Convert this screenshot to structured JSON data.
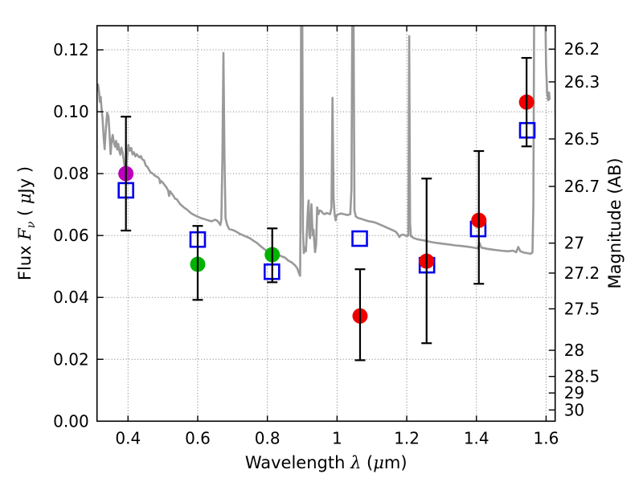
{
  "figure": {
    "background": "#ffffff",
    "xlabel_parts": [
      {
        "t": "Wavelength  ",
        "i": false
      },
      {
        "t": "λ",
        "i": true
      },
      {
        "t": " (",
        "i": false
      },
      {
        "t": "μ",
        "i": true
      },
      {
        "t": "m)",
        "i": false
      }
    ],
    "ylabel_left_parts": [
      {
        "t": "Flux  ",
        "i": false
      },
      {
        "t": "F",
        "i": true
      },
      {
        "t": "ν",
        "i": true,
        "sub": true
      },
      {
        "t": "  ( ",
        "i": false
      },
      {
        "t": "μ",
        "i": true
      },
      {
        "t": "Jy )",
        "i": false
      }
    ],
    "ylabel_right": "Magnitude (AB)"
  },
  "chart_data": {
    "type": "line+scatter",
    "title": "",
    "xlabel": "Wavelength λ (μm)",
    "ylabel_left": "Flux Fν (μJy)",
    "ylabel_right": "Magnitude (AB)",
    "grid": true,
    "grid_color": "#777777",
    "x_axis": {
      "range": [
        0.311,
        1.626
      ],
      "ticks": [
        0.4,
        0.6,
        0.8,
        1.0,
        1.2,
        1.4,
        1.6
      ],
      "tick_labels": [
        "0.4",
        "0.6",
        "0.8",
        "1",
        "1.2",
        "1.4",
        "1.6"
      ]
    },
    "y_axis_left": {
      "range": [
        0,
        0.1278
      ],
      "ticks": [
        0.0,
        0.02,
        0.04,
        0.06,
        0.08,
        0.1,
        0.12
      ],
      "tick_labels": [
        "0.00",
        "0.02",
        "0.04",
        "0.06",
        "0.08",
        "0.10",
        "0.12"
      ]
    },
    "y_axis_right": {
      "note": "AB magnitude axis, flux-linear placement: flux_uJy = 10^((23.9 - m)/2.5)",
      "flux_zeropoint_mag": 23.9,
      "tick_values_mag": [
        26.2,
        26.3,
        26.5,
        26.7,
        27,
        27.2,
        27.5,
        28,
        28.5,
        29,
        30
      ],
      "tick_labels": [
        "26.2",
        "26.3",
        "26.5",
        "26.7",
        "27",
        "27.2",
        "27.5",
        "28",
        "28.5",
        "29",
        "30"
      ]
    },
    "series": [
      {
        "name": "model-spectrum",
        "type": "line",
        "color": "#999999",
        "width": 2.6,
        "points": [
          [
            0.311,
            0.1075
          ],
          [
            0.314,
            0.1088
          ],
          [
            0.317,
            0.1062
          ],
          [
            0.319,
            0.1032
          ],
          [
            0.3215,
            0.1048
          ],
          [
            0.324,
            0.1012
          ],
          [
            0.327,
            0.0978
          ],
          [
            0.33,
            0.092
          ],
          [
            0.333,
            0.0879
          ],
          [
            0.336,
            0.0936
          ],
          [
            0.34,
            0.0996
          ],
          [
            0.344,
            0.0984
          ],
          [
            0.347,
            0.0926
          ],
          [
            0.35,
            0.0863
          ],
          [
            0.353,
            0.0906
          ],
          [
            0.356,
            0.0925
          ],
          [
            0.359,
            0.0903
          ],
          [
            0.363,
            0.0887
          ],
          [
            0.366,
            0.0906
          ],
          [
            0.369,
            0.0878
          ],
          [
            0.372,
            0.0896
          ],
          [
            0.375,
            0.0874
          ],
          [
            0.378,
            0.0861
          ],
          [
            0.381,
            0.0884
          ],
          [
            0.385,
            0.0866
          ],
          [
            0.388,
            0.0841
          ],
          [
            0.391,
            0.0815
          ],
          [
            0.394,
            0.0804
          ],
          [
            0.397,
            0.0846
          ],
          [
            0.401,
            0.0893
          ],
          [
            0.405,
            0.0874
          ],
          [
            0.409,
            0.0883
          ],
          [
            0.413,
            0.0862
          ],
          [
            0.417,
            0.0869
          ],
          [
            0.421,
            0.0856
          ],
          [
            0.425,
            0.0863
          ],
          [
            0.429,
            0.0857
          ],
          [
            0.433,
            0.0852
          ],
          [
            0.437,
            0.0857
          ],
          [
            0.441,
            0.0846
          ],
          [
            0.446,
            0.0843
          ],
          [
            0.451,
            0.0826
          ],
          [
            0.456,
            0.0821
          ],
          [
            0.461,
            0.0811
          ],
          [
            0.466,
            0.0803
          ],
          [
            0.471,
            0.08
          ],
          [
            0.476,
            0.0794
          ],
          [
            0.481,
            0.0791
          ],
          [
            0.486,
            0.0788
          ],
          [
            0.49,
            0.0783
          ],
          [
            0.492,
            0.0769
          ],
          [
            0.495,
            0.0776
          ],
          [
            0.5,
            0.0771
          ],
          [
            0.505,
            0.0763
          ],
          [
            0.51,
            0.0756
          ],
          [
            0.515,
            0.0746
          ],
          [
            0.518,
            0.0728
          ],
          [
            0.521,
            0.0743
          ],
          [
            0.525,
            0.0736
          ],
          [
            0.53,
            0.0729
          ],
          [
            0.535,
            0.0719
          ],
          [
            0.54,
            0.0717
          ],
          [
            0.545,
            0.0709
          ],
          [
            0.55,
            0.0701
          ],
          [
            0.555,
            0.0696
          ],
          [
            0.56,
            0.0691
          ],
          [
            0.57,
            0.0683
          ],
          [
            0.58,
            0.0673
          ],
          [
            0.59,
            0.0666
          ],
          [
            0.6,
            0.0661
          ],
          [
            0.61,
            0.0656
          ],
          [
            0.62,
            0.0653
          ],
          [
            0.63,
            0.0649
          ],
          [
            0.64,
            0.0646
          ],
          [
            0.65,
            0.0651
          ],
          [
            0.656,
            0.0648
          ],
          [
            0.661,
            0.0641
          ],
          [
            0.665,
            0.0634
          ],
          [
            0.668,
            0.0651
          ],
          [
            0.671,
            0.085
          ],
          [
            0.674,
            0.119
          ],
          [
            0.677,
            0.085
          ],
          [
            0.68,
            0.0656
          ],
          [
            0.684,
            0.0636
          ],
          [
            0.69,
            0.0621
          ],
          [
            0.7,
            0.0618
          ],
          [
            0.71,
            0.0613
          ],
          [
            0.72,
            0.0606
          ],
          [
            0.73,
            0.0601
          ],
          [
            0.74,
            0.0596
          ],
          [
            0.75,
            0.0591
          ],
          [
            0.76,
            0.0583
          ],
          [
            0.77,
            0.0576
          ],
          [
            0.78,
            0.0566
          ],
          [
            0.79,
            0.0557
          ],
          [
            0.8,
            0.0549
          ],
          [
            0.81,
            0.0544
          ],
          [
            0.8145,
            0.0553
          ],
          [
            0.82,
            0.0546
          ],
          [
            0.83,
            0.0539
          ],
          [
            0.84,
            0.0533
          ],
          [
            0.85,
            0.0529
          ],
          [
            0.86,
            0.0519
          ],
          [
            0.87,
            0.0513
          ],
          [
            0.88,
            0.0503
          ],
          [
            0.886,
            0.0494
          ],
          [
            0.891,
            0.0477
          ],
          [
            0.894,
            0.047
          ],
          [
            0.8955,
            0.075
          ],
          [
            0.897,
            0.14
          ],
          [
            0.9,
            0.14
          ],
          [
            0.902,
            0.062
          ],
          [
            0.9045,
            0.0543
          ],
          [
            0.9075,
            0.0561
          ],
          [
            0.9105,
            0.0549
          ],
          [
            0.9135,
            0.0619
          ],
          [
            0.9165,
            0.0691
          ],
          [
            0.9185,
            0.0713
          ],
          [
            0.9205,
            0.0601
          ],
          [
            0.9225,
            0.0591
          ],
          [
            0.9245,
            0.0649
          ],
          [
            0.9265,
            0.0701
          ],
          [
            0.9285,
            0.0641
          ],
          [
            0.9305,
            0.0601
          ],
          [
            0.9325,
            0.0619
          ],
          [
            0.9345,
            0.0581
          ],
          [
            0.937,
            0.0546
          ],
          [
            0.94,
            0.0571
          ],
          [
            0.943,
            0.0691
          ],
          [
            0.9465,
            0.0669
          ],
          [
            0.95,
            0.0681
          ],
          [
            0.955,
            0.0679
          ],
          [
            0.96,
            0.0671
          ],
          [
            0.965,
            0.0669
          ],
          [
            0.97,
            0.0673
          ],
          [
            0.975,
            0.0671
          ],
          [
            0.98,
            0.0669
          ],
          [
            0.984,
            0.0691
          ],
          [
            0.987,
            0.1045
          ],
          [
            0.99,
            0.0721
          ],
          [
            0.993,
            0.0669
          ],
          [
            0.996,
            0.0649
          ],
          [
            0.999,
            0.0666
          ],
          [
            1.005,
            0.0669
          ],
          [
            1.012,
            0.0671
          ],
          [
            1.02,
            0.0669
          ],
          [
            1.03,
            0.0666
          ],
          [
            1.038,
            0.0669
          ],
          [
            1.0415,
            0.075
          ],
          [
            1.044,
            0.14
          ],
          [
            1.047,
            0.14
          ],
          [
            1.05,
            0.0681
          ],
          [
            1.054,
            0.0661
          ],
          [
            1.062,
            0.0656
          ],
          [
            1.072,
            0.0653
          ],
          [
            1.082,
            0.0649
          ],
          [
            1.092,
            0.0646
          ],
          [
            1.102,
            0.0644
          ],
          [
            1.112,
            0.0641
          ],
          [
            1.122,
            0.0636
          ],
          [
            1.132,
            0.0631
          ],
          [
            1.142,
            0.0626
          ],
          [
            1.152,
            0.0621
          ],
          [
            1.162,
            0.0616
          ],
          [
            1.17,
            0.0611
          ],
          [
            1.176,
            0.0601
          ],
          [
            1.179,
            0.0595
          ],
          [
            1.183,
            0.0601
          ],
          [
            1.19,
            0.0603
          ],
          [
            1.196,
            0.06
          ],
          [
            1.201,
            0.0598
          ],
          [
            1.2045,
            0.0601
          ],
          [
            1.207,
            0.1244
          ],
          [
            1.2095,
            0.0641
          ],
          [
            1.212,
            0.0598
          ],
          [
            1.22,
            0.0592
          ],
          [
            1.23,
            0.0588
          ],
          [
            1.24,
            0.0586
          ],
          [
            1.25,
            0.0584
          ],
          [
            1.262,
            0.0581
          ],
          [
            1.274,
            0.0578
          ],
          [
            1.286,
            0.0576
          ],
          [
            1.3,
            0.0574
          ],
          [
            1.32,
            0.0571
          ],
          [
            1.34,
            0.0568
          ],
          [
            1.36,
            0.0566
          ],
          [
            1.38,
            0.0563
          ],
          [
            1.396,
            0.056
          ],
          [
            1.404,
            0.0558
          ],
          [
            1.409,
            0.0576
          ],
          [
            1.414,
            0.0561
          ],
          [
            1.43,
            0.0557
          ],
          [
            1.45,
            0.0554
          ],
          [
            1.47,
            0.0551
          ],
          [
            1.49,
            0.0549
          ],
          [
            1.505,
            0.0551
          ],
          [
            1.514,
            0.0546
          ],
          [
            1.52,
            0.0563
          ],
          [
            1.526,
            0.0549
          ],
          [
            1.536,
            0.0545
          ],
          [
            1.546,
            0.0543
          ],
          [
            1.556,
            0.0541
          ],
          [
            1.561,
            0.0546
          ],
          [
            1.5635,
            0.07
          ],
          [
            1.566,
            0.14
          ],
          [
            1.597,
            0.14
          ],
          [
            1.6,
            0.115
          ],
          [
            1.603,
            0.1062
          ],
          [
            1.606,
            0.1037
          ],
          [
            1.6085,
            0.1062
          ],
          [
            1.61,
            0.1041
          ]
        ]
      },
      {
        "name": "photometry-open-squares",
        "type": "scatter",
        "marker": "open-square",
        "color": "#0000ee",
        "size": 18,
        "points": [
          [
            0.394,
            0.0746,
            null,
            null
          ],
          [
            0.6,
            0.0587,
            null,
            null
          ],
          [
            0.813,
            0.0483,
            null,
            null
          ],
          [
            1.065,
            0.059,
            null,
            null
          ],
          [
            1.258,
            0.0504,
            null,
            null
          ],
          [
            1.405,
            0.0621,
            null,
            null
          ],
          [
            1.546,
            0.094,
            null,
            null
          ]
        ]
      },
      {
        "name": "measured-flux-magenta",
        "type": "scatter",
        "marker": "circle",
        "color": "#bb00bb",
        "size": 19,
        "points": [
          [
            0.394,
            0.08,
            0.0616,
            0.0984
          ]
        ]
      },
      {
        "name": "measured-flux-green",
        "type": "scatter",
        "marker": "circle",
        "color": "#00b300",
        "size": 19,
        "points": [
          [
            0.6,
            0.0507,
            0.0392,
            0.0631
          ],
          [
            0.814,
            0.0538,
            0.0449,
            0.0623
          ]
        ]
      },
      {
        "name": "measured-flux-red",
        "type": "scatter",
        "marker": "circle",
        "color": "#ee0000",
        "size": 19,
        "points": [
          [
            1.066,
            0.034,
            0.0197,
            0.0491
          ],
          [
            1.257,
            0.0517,
            0.0252,
            0.0784
          ],
          [
            1.407,
            0.0649,
            0.0444,
            0.0873
          ],
          [
            1.544,
            0.1031,
            0.0888,
            0.1174
          ]
        ]
      }
    ],
    "errorbar_color": "#000000",
    "frame_color": "#000000"
  }
}
